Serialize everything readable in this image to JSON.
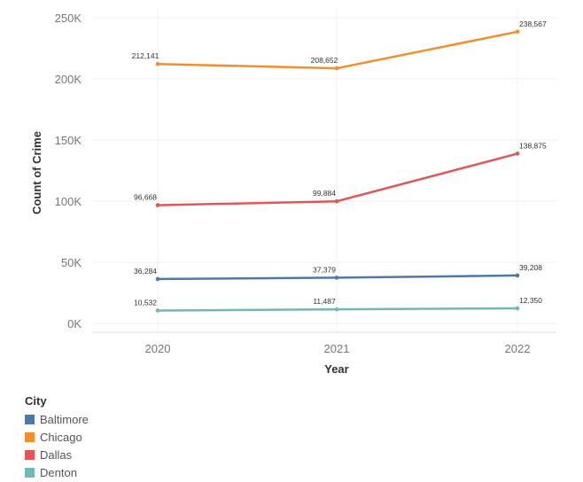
{
  "chart_data": {
    "type": "line",
    "x": [
      "2020",
      "2021",
      "2022"
    ],
    "xlabel": "Year",
    "ylabel": "Count of Crime",
    "ylim": [
      0,
      250000
    ],
    "yticks": [
      {
        "value": 0,
        "label": "0K"
      },
      {
        "value": 50000,
        "label": "50K"
      },
      {
        "value": 100000,
        "label": "100K"
      },
      {
        "value": 150000,
        "label": "150K"
      },
      {
        "value": 200000,
        "label": "200K"
      },
      {
        "value": 250000,
        "label": "250K"
      }
    ],
    "grid": true,
    "legend_title": "City",
    "legend_position": "bottom-left",
    "series": [
      {
        "name": "Baltimore",
        "color": "#4e79a7",
        "values": [
          36284,
          37379,
          39208
        ],
        "labels": [
          "36,284",
          "37,379",
          "39,208"
        ]
      },
      {
        "name": "Chicago",
        "color": "#f28e2b",
        "values": [
          212141,
          208652,
          238567
        ],
        "labels": [
          "212,141",
          "208,652",
          "238,567"
        ]
      },
      {
        "name": "Dallas",
        "color": "#e15759",
        "values": [
          96668,
          99884,
          138875
        ],
        "labels": [
          "96,668",
          "99,884",
          "138,875"
        ]
      },
      {
        "name": "Denton",
        "color": "#76b7b2",
        "values": [
          10532,
          11487,
          12350
        ],
        "labels": [
          "10,532",
          "11,487",
          "12,350"
        ]
      }
    ]
  }
}
